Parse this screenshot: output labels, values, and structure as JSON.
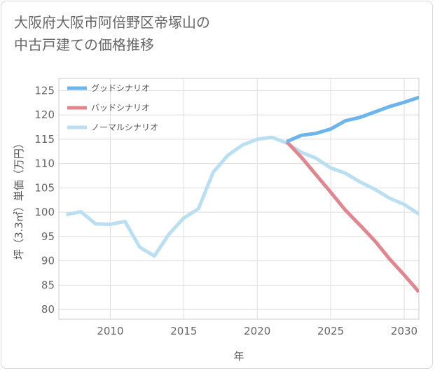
{
  "chart_data": {
    "type": "line",
    "title_lines": [
      "大阪府大阪市阿倍野区帝塚山の",
      "中古戸建ての価格推移"
    ],
    "xlabel": "年",
    "ylabel": "坪（3.3㎡）単価（万円）",
    "xlim": [
      2006.5,
      2031
    ],
    "ylim": [
      78,
      127.5
    ],
    "x_ticks": [
      2010,
      2015,
      2020,
      2025,
      2030
    ],
    "y_ticks": [
      80,
      85,
      90,
      95,
      100,
      105,
      110,
      115,
      120,
      125
    ],
    "grid": true,
    "legend_position": "top-left",
    "series": [
      {
        "name": "グッドシナリオ",
        "color": "#6cb4ec",
        "x": [
          2022,
          2023,
          2024,
          2025,
          2026,
          2027,
          2028,
          2029,
          2030,
          2031
        ],
        "y": [
          114.5,
          115.8,
          116.2,
          117.1,
          118.8,
          119.5,
          120.6,
          121.7,
          122.6,
          123.6
        ]
      },
      {
        "name": "バッドシナリオ",
        "color": "#e0868f",
        "x": [
          2022,
          2023,
          2024,
          2025,
          2026,
          2027,
          2028,
          2029,
          2030,
          2031
        ],
        "y": [
          114.5,
          111.3,
          107.7,
          104.1,
          100.4,
          97.3,
          94.1,
          90.4,
          87.1,
          83.6
        ]
      },
      {
        "name": "ノーマルシナリオ",
        "color": "#b9dff0",
        "x": [
          2007,
          2008,
          2009,
          2010,
          2011,
          2012,
          2013,
          2014,
          2015,
          2016,
          2017,
          2018,
          2019,
          2020,
          2021,
          2022,
          2023,
          2024,
          2025,
          2026,
          2027,
          2028,
          2029,
          2030,
          2031
        ],
        "y": [
          99.5,
          100.1,
          97.6,
          97.5,
          98.1,
          92.8,
          91.0,
          95.5,
          98.8,
          100.7,
          108.2,
          111.7,
          113.8,
          115.0,
          115.4,
          114.2,
          112.3,
          111.1,
          109.1,
          108.0,
          106.2,
          104.7,
          102.9,
          101.6,
          99.6
        ]
      }
    ]
  }
}
